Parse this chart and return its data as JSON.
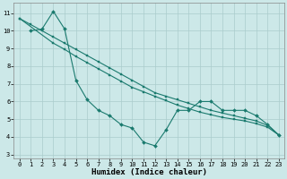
{
  "bg_color": "#cce8e8",
  "grid_color": "#aacccc",
  "line_color": "#1a7a6e",
  "marker_color": "#1a7a6e",
  "xlabel": "Humidex (Indice chaleur)",
  "xlim": [
    -0.5,
    23.5
  ],
  "ylim": [
    2.8,
    11.6
  ],
  "yticks": [
    3,
    4,
    5,
    6,
    7,
    8,
    9,
    10,
    11
  ],
  "xticks": [
    0,
    1,
    2,
    3,
    4,
    5,
    6,
    7,
    8,
    9,
    10,
    11,
    12,
    13,
    14,
    15,
    16,
    17,
    18,
    19,
    20,
    21,
    22,
    23
  ],
  "line1_x": [
    0,
    1,
    2,
    3,
    4,
    5,
    6,
    7,
    8,
    9,
    10,
    11,
    12,
    13,
    14,
    15,
    16,
    17,
    18,
    19,
    20,
    21,
    22,
    23
  ],
  "line1_y": [
    10.7,
    10.35,
    10.0,
    9.65,
    9.3,
    8.95,
    8.6,
    8.25,
    7.9,
    7.55,
    7.2,
    6.85,
    6.5,
    6.3,
    6.1,
    5.9,
    5.7,
    5.5,
    5.35,
    5.2,
    5.05,
    4.9,
    4.65,
    4.1
  ],
  "line2_x": [
    0,
    3,
    4,
    5,
    6,
    7,
    8,
    9,
    10,
    11,
    12,
    13,
    14,
    15,
    16,
    17,
    18,
    19,
    20,
    21,
    22,
    23
  ],
  "line2_y": [
    10.7,
    9.3,
    8.95,
    8.55,
    8.2,
    7.85,
    7.5,
    7.15,
    6.8,
    6.55,
    6.3,
    6.05,
    5.8,
    5.6,
    5.4,
    5.25,
    5.1,
    5.0,
    4.9,
    4.75,
    4.55,
    4.1
  ],
  "line3_x": [
    1,
    2,
    3,
    4,
    5,
    6,
    7,
    8,
    9,
    10,
    11,
    12,
    13,
    14,
    15,
    16,
    17,
    18,
    19,
    20,
    21,
    22,
    23
  ],
  "line3_y": [
    10.0,
    10.1,
    11.1,
    10.1,
    7.2,
    6.1,
    5.5,
    5.2,
    4.7,
    4.5,
    3.7,
    3.5,
    4.4,
    5.5,
    5.5,
    6.0,
    6.0,
    5.5,
    5.5,
    5.5,
    5.2,
    4.7,
    4.1
  ],
  "tick_fontsize": 5.0,
  "xlabel_fontsize": 6.5,
  "marker_size": 2.0,
  "line_width": 0.8
}
